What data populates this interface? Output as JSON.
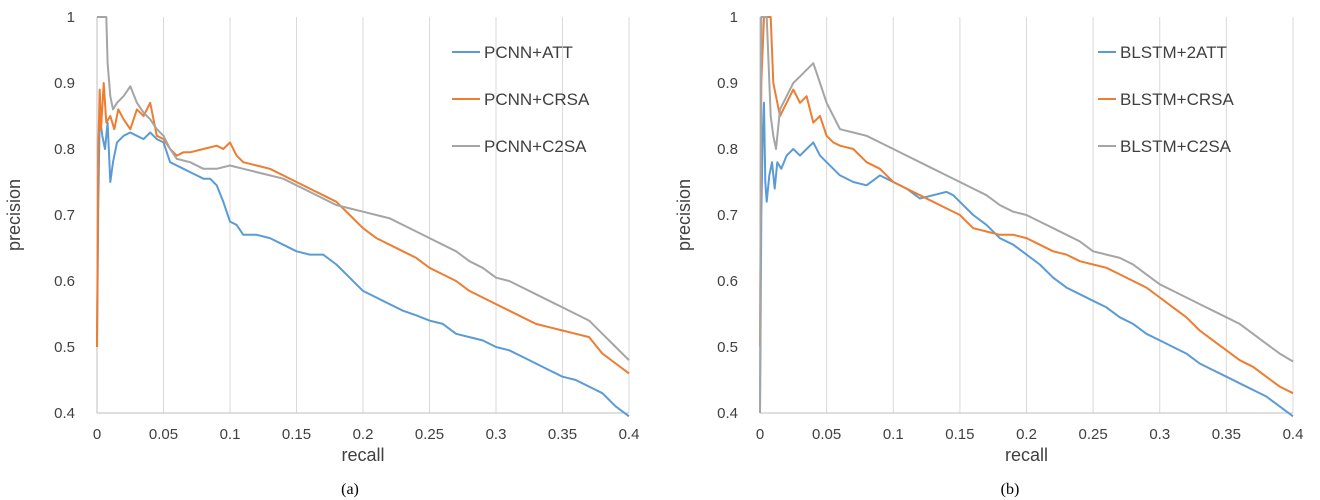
{
  "colors": {
    "grid": "#d9d9d9",
    "axis": "#bfbfbf",
    "blue": "#5b9bd5",
    "orange": "#ed7d31",
    "gray": "#a5a5a5"
  },
  "chart_data": [
    {
      "type": "line",
      "caption": "(a)",
      "xlabel": "recall",
      "ylabel": "precision",
      "xlim": [
        0,
        0.4
      ],
      "ylim": [
        0.4,
        1
      ],
      "x_ticks": [
        "0",
        "0.05",
        "0.1",
        "0.15",
        "0.2",
        "0.25",
        "0.3",
        "0.35",
        "0.4"
      ],
      "y_ticks": [
        "0.4",
        "0.5",
        "0.6",
        "0.7",
        "0.8",
        "0.9",
        "1"
      ],
      "grid": "vertical",
      "legend": "top-right",
      "series": [
        {
          "name": "PCNN+ATT",
          "color": "#5b9bd5",
          "x": [
            0,
            0.001,
            0.002,
            0.004,
            0.006,
            0.008,
            0.01,
            0.012,
            0.015,
            0.02,
            0.025,
            0.03,
            0.035,
            0.04,
            0.045,
            0.05,
            0.055,
            0.06,
            0.065,
            0.07,
            0.075,
            0.08,
            0.085,
            0.09,
            0.095,
            0.1,
            0.105,
            0.11,
            0.12,
            0.13,
            0.14,
            0.15,
            0.16,
            0.17,
            0.18,
            0.19,
            0.2,
            0.21,
            0.22,
            0.23,
            0.24,
            0.25,
            0.26,
            0.27,
            0.28,
            0.29,
            0.3,
            0.31,
            0.32,
            0.33,
            0.34,
            0.35,
            0.36,
            0.37,
            0.38,
            0.39,
            0.4
          ],
          "y": [
            0.5,
            0.72,
            0.85,
            0.82,
            0.8,
            0.84,
            0.75,
            0.78,
            0.81,
            0.82,
            0.825,
            0.82,
            0.815,
            0.825,
            0.815,
            0.81,
            0.78,
            0.775,
            0.77,
            0.765,
            0.76,
            0.755,
            0.755,
            0.745,
            0.72,
            0.69,
            0.685,
            0.67,
            0.67,
            0.665,
            0.655,
            0.645,
            0.64,
            0.64,
            0.625,
            0.605,
            0.585,
            0.575,
            0.565,
            0.555,
            0.548,
            0.54,
            0.535,
            0.52,
            0.515,
            0.51,
            0.5,
            0.495,
            0.485,
            0.475,
            0.465,
            0.455,
            0.45,
            0.44,
            0.43,
            0.41,
            0.395
          ]
        },
        {
          "name": "PCNN+CRSA",
          "color": "#ed7d31",
          "x": [
            0,
            0.001,
            0.002,
            0.003,
            0.005,
            0.007,
            0.01,
            0.013,
            0.016,
            0.02,
            0.025,
            0.03,
            0.035,
            0.04,
            0.045,
            0.05,
            0.055,
            0.06,
            0.065,
            0.07,
            0.08,
            0.09,
            0.095,
            0.1,
            0.105,
            0.11,
            0.12,
            0.13,
            0.14,
            0.15,
            0.16,
            0.17,
            0.18,
            0.19,
            0.2,
            0.21,
            0.22,
            0.23,
            0.24,
            0.25,
            0.26,
            0.27,
            0.28,
            0.29,
            0.3,
            0.31,
            0.32,
            0.33,
            0.34,
            0.35,
            0.36,
            0.37,
            0.38,
            0.39,
            0.4
          ],
          "y": [
            0.5,
            0.8,
            0.89,
            0.83,
            0.9,
            0.84,
            0.85,
            0.83,
            0.86,
            0.845,
            0.83,
            0.86,
            0.85,
            0.87,
            0.82,
            0.815,
            0.8,
            0.79,
            0.795,
            0.795,
            0.8,
            0.805,
            0.8,
            0.81,
            0.79,
            0.78,
            0.775,
            0.77,
            0.76,
            0.75,
            0.74,
            0.73,
            0.72,
            0.7,
            0.68,
            0.665,
            0.655,
            0.645,
            0.635,
            0.62,
            0.61,
            0.6,
            0.585,
            0.575,
            0.565,
            0.555,
            0.545,
            0.535,
            0.53,
            0.525,
            0.52,
            0.515,
            0.49,
            0.475,
            0.46
          ]
        },
        {
          "name": "PCNN+C2SA",
          "color": "#a5a5a5",
          "x": [
            0,
            0.001,
            0.002,
            0.003,
            0.005,
            0.007,
            0.008,
            0.01,
            0.012,
            0.015,
            0.02,
            0.025,
            0.03,
            0.035,
            0.04,
            0.045,
            0.05,
            0.055,
            0.06,
            0.07,
            0.08,
            0.09,
            0.1,
            0.11,
            0.12,
            0.13,
            0.14,
            0.15,
            0.16,
            0.17,
            0.18,
            0.19,
            0.2,
            0.21,
            0.22,
            0.23,
            0.24,
            0.25,
            0.26,
            0.27,
            0.28,
            0.29,
            0.3,
            0.31,
            0.32,
            0.33,
            0.34,
            0.35,
            0.36,
            0.37,
            0.38,
            0.39,
            0.4
          ],
          "y": [
            1,
            1,
            1,
            1,
            1,
            1,
            0.93,
            0.88,
            0.86,
            0.87,
            0.88,
            0.895,
            0.87,
            0.855,
            0.845,
            0.83,
            0.82,
            0.8,
            0.785,
            0.78,
            0.77,
            0.77,
            0.775,
            0.77,
            0.765,
            0.76,
            0.755,
            0.745,
            0.735,
            0.725,
            0.715,
            0.71,
            0.705,
            0.7,
            0.695,
            0.685,
            0.675,
            0.665,
            0.655,
            0.645,
            0.63,
            0.62,
            0.605,
            0.6,
            0.59,
            0.58,
            0.57,
            0.56,
            0.55,
            0.54,
            0.52,
            0.5,
            0.48
          ]
        }
      ]
    },
    {
      "type": "line",
      "caption": "(b)",
      "xlabel": "recall",
      "ylabel": "precision",
      "xlim": [
        0,
        0.4
      ],
      "ylim": [
        0.4,
        1
      ],
      "x_ticks": [
        "0",
        "0.05",
        "0.1",
        "0.15",
        "0.2",
        "0.25",
        "0.3",
        "0.35",
        "0.4"
      ],
      "y_ticks": [
        "0.4",
        "0.5",
        "0.6",
        "0.7",
        "0.8",
        "0.9",
        "1"
      ],
      "grid": "vertical",
      "legend": "top-right",
      "series": [
        {
          "name": "BLSTM+2ATT",
          "color": "#5b9bd5",
          "x": [
            0,
            0.001,
            0.002,
            0.003,
            0.004,
            0.005,
            0.007,
            0.009,
            0.011,
            0.013,
            0.016,
            0.02,
            0.025,
            0.03,
            0.035,
            0.04,
            0.045,
            0.05,
            0.06,
            0.07,
            0.08,
            0.09,
            0.1,
            0.11,
            0.12,
            0.13,
            0.14,
            0.145,
            0.15,
            0.16,
            0.17,
            0.18,
            0.19,
            0.2,
            0.21,
            0.22,
            0.23,
            0.24,
            0.25,
            0.26,
            0.27,
            0.28,
            0.29,
            0.3,
            0.31,
            0.32,
            0.33,
            0.34,
            0.35,
            0.36,
            0.37,
            0.38,
            0.39,
            0.4
          ],
          "y": [
            0.4,
            0.7,
            0.82,
            0.87,
            0.75,
            0.72,
            0.76,
            0.78,
            0.74,
            0.78,
            0.77,
            0.79,
            0.8,
            0.79,
            0.8,
            0.81,
            0.79,
            0.78,
            0.76,
            0.75,
            0.745,
            0.76,
            0.75,
            0.74,
            0.725,
            0.73,
            0.735,
            0.73,
            0.72,
            0.7,
            0.685,
            0.665,
            0.655,
            0.64,
            0.625,
            0.605,
            0.59,
            0.58,
            0.57,
            0.56,
            0.545,
            0.535,
            0.52,
            0.51,
            0.5,
            0.49,
            0.475,
            0.465,
            0.455,
            0.445,
            0.435,
            0.425,
            0.41,
            0.395
          ]
        },
        {
          "name": "BLSTM+CRSA",
          "color": "#ed7d31",
          "x": [
            0,
            0.001,
            0.003,
            0.005,
            0.008,
            0.01,
            0.012,
            0.015,
            0.02,
            0.025,
            0.03,
            0.035,
            0.04,
            0.045,
            0.05,
            0.055,
            0.06,
            0.07,
            0.08,
            0.09,
            0.1,
            0.11,
            0.12,
            0.13,
            0.14,
            0.15,
            0.16,
            0.17,
            0.18,
            0.19,
            0.2,
            0.21,
            0.22,
            0.23,
            0.24,
            0.25,
            0.26,
            0.27,
            0.28,
            0.29,
            0.3,
            0.31,
            0.32,
            0.33,
            0.34,
            0.35,
            0.36,
            0.37,
            0.38,
            0.39,
            0.4
          ],
          "y": [
            0.5,
            0.9,
            1,
            1,
            1,
            0.9,
            0.88,
            0.85,
            0.87,
            0.89,
            0.87,
            0.88,
            0.84,
            0.85,
            0.82,
            0.81,
            0.805,
            0.8,
            0.78,
            0.77,
            0.75,
            0.74,
            0.73,
            0.72,
            0.71,
            0.7,
            0.68,
            0.675,
            0.67,
            0.67,
            0.665,
            0.655,
            0.645,
            0.64,
            0.63,
            0.625,
            0.62,
            0.61,
            0.6,
            0.59,
            0.575,
            0.56,
            0.545,
            0.525,
            0.51,
            0.495,
            0.48,
            0.47,
            0.455,
            0.44,
            0.43
          ]
        },
        {
          "name": "BLSTM+C2SA",
          "color": "#a5a5a5",
          "x": [
            0,
            0.001,
            0.003,
            0.005,
            0.008,
            0.01,
            0.012,
            0.015,
            0.02,
            0.025,
            0.03,
            0.035,
            0.04,
            0.045,
            0.05,
            0.055,
            0.06,
            0.07,
            0.08,
            0.09,
            0.1,
            0.11,
            0.12,
            0.13,
            0.14,
            0.15,
            0.16,
            0.17,
            0.18,
            0.19,
            0.2,
            0.21,
            0.22,
            0.23,
            0.24,
            0.25,
            0.26,
            0.27,
            0.28,
            0.29,
            0.3,
            0.31,
            0.32,
            0.33,
            0.34,
            0.35,
            0.36,
            0.37,
            0.38,
            0.39,
            0.4
          ],
          "y": [
            0.4,
            1,
            1,
            1,
            0.85,
            0.82,
            0.8,
            0.86,
            0.88,
            0.9,
            0.91,
            0.92,
            0.93,
            0.9,
            0.87,
            0.85,
            0.83,
            0.825,
            0.82,
            0.81,
            0.8,
            0.79,
            0.78,
            0.77,
            0.76,
            0.75,
            0.74,
            0.73,
            0.715,
            0.705,
            0.7,
            0.69,
            0.68,
            0.67,
            0.66,
            0.645,
            0.64,
            0.635,
            0.625,
            0.61,
            0.595,
            0.585,
            0.575,
            0.565,
            0.555,
            0.545,
            0.535,
            0.52,
            0.505,
            0.49,
            0.478
          ]
        }
      ]
    }
  ]
}
